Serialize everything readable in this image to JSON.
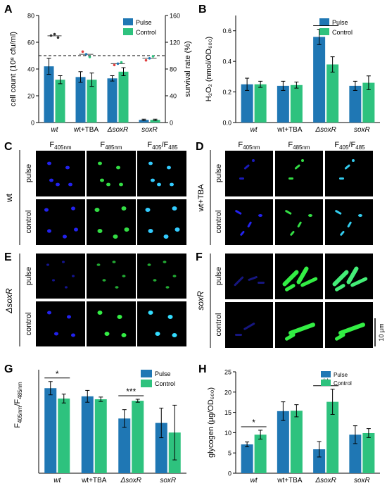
{
  "colors": {
    "pulse": "#1f77b4",
    "control": "#2ec27e",
    "ref_line": "#000000"
  },
  "chart_data": [
    {
      "panel": "A",
      "type": "bar",
      "categories": [
        "wt",
        "wt+TBA",
        "ΔsoxR",
        "soxR"
      ],
      "ylabel": "cell count (10⁸ cfu/ml)",
      "y2label": "survival rate (%)",
      "ylim": [
        0,
        80
      ],
      "yticks": [
        "0",
        "20",
        "40",
        "60",
        "80"
      ],
      "y2lim": [
        0,
        160
      ],
      "y2ticks": [
        "0",
        "40",
        "80",
        "120",
        "160"
      ],
      "reference_line_y2": 100,
      "legend": "top-right",
      "series": [
        {
          "name": "Pulse",
          "values": [
            42,
            34,
            33,
            2
          ],
          "errors": [
            6,
            4,
            2,
            0.5
          ]
        },
        {
          "name": "Control",
          "values": [
            32,
            32,
            38,
            2
          ],
          "errors": [
            3,
            5,
            3,
            0.5
          ]
        }
      ],
      "survival_points_y2": [
        [
          130,
          132,
          127
        ],
        [
          106,
          102,
          98
        ],
        [
          86,
          88,
          90
        ],
        [
          93,
          96,
          99
        ]
      ]
    },
    {
      "panel": "B",
      "type": "bar",
      "categories": [
        "wt",
        "wt+TBA",
        "ΔsoxR",
        "soxR"
      ],
      "ylabel": "H₂O₂ (nmol/OD₆₀₀)",
      "ylim": [
        0,
        0.7
      ],
      "yticks": [
        "0.0",
        "0.2",
        "0.4",
        "0.6"
      ],
      "legend": "top-right",
      "significance": [
        {
          "category": "ΔsoxR",
          "label": "*"
        }
      ],
      "series": [
        {
          "name": "Pulse",
          "values": [
            0.25,
            0.24,
            0.56,
            0.24
          ],
          "errors": [
            0.04,
            0.03,
            0.05,
            0.03
          ]
        },
        {
          "name": "Control",
          "values": [
            0.25,
            0.245,
            0.38,
            0.26
          ],
          "errors": [
            0.02,
            0.02,
            0.05,
            0.045
          ]
        }
      ]
    },
    {
      "panel": "G",
      "type": "bar",
      "categories": [
        "wt",
        "wt+TBA",
        "ΔsoxR",
        "soxR"
      ],
      "ylabel": "F405nm/F485nm",
      "ylim": [
        0,
        1.4
      ],
      "legend": "top-right",
      "significance": [
        {
          "category": "wt",
          "label": "*"
        },
        {
          "category": "ΔsoxR",
          "label": "***"
        }
      ],
      "series": [
        {
          "name": "Pulse",
          "values": [
            1.15,
            1.04,
            0.74,
            0.68
          ],
          "errors": [
            0.09,
            0.08,
            0.12,
            0.2
          ]
        },
        {
          "name": "Control",
          "values": [
            1.01,
            1.0,
            0.98,
            0.55
          ],
          "errors": [
            0.06,
            0.03,
            0.02,
            0.37
          ]
        }
      ]
    },
    {
      "panel": "H",
      "type": "bar",
      "categories": [
        "wt",
        "wt+TBA",
        "ΔsoxR",
        "soxR"
      ],
      "ylabel": "glycogen (µg/OD₆₀₀)",
      "ylim": [
        0,
        25
      ],
      "yticks": [
        "0",
        "5",
        "10",
        "15",
        "20",
        "25"
      ],
      "legend": "top-right",
      "significance": [
        {
          "category": "wt",
          "label": "*"
        },
        {
          "category": "ΔsoxR",
          "label": "**"
        }
      ],
      "series": [
        {
          "name": "Pulse",
          "values": [
            7.1,
            15.3,
            5.9,
            9.5
          ],
          "errors": [
            0.6,
            2.3,
            1.9,
            2.2
          ]
        },
        {
          "name": "Control",
          "values": [
            9.5,
            15.4,
            17.6,
            9.9
          ],
          "errors": [
            1.1,
            1.5,
            3.1,
            1.1
          ]
        }
      ]
    }
  ],
  "micrographs": {
    "col_headers": {
      "f405": "F",
      "f405_sub": "405nm",
      "f485": "F",
      "f485_sub": "485nm",
      "ratio_a": "F",
      "ratio_a_sub": "405",
      "ratio_sep": "/F",
      "ratio_b_sub": "485"
    },
    "row_labels": {
      "pulse": "pulse",
      "control": "control"
    },
    "panels": [
      {
        "letter": "C",
        "strain": "wt"
      },
      {
        "letter": "D",
        "strain": "wt+TBA"
      },
      {
        "letter": "E",
        "strain": "ΔsoxR"
      },
      {
        "letter": "F",
        "strain": "soxR"
      }
    ],
    "scale_bar": "10 µm"
  }
}
